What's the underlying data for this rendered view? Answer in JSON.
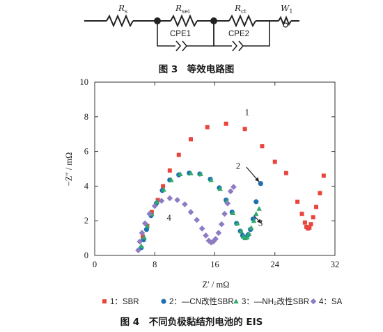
{
  "figure3": {
    "elements": [
      {
        "symbol": "R",
        "sub": "s"
      },
      {
        "symbol": "R",
        "sub": "sei"
      },
      {
        "symbol": "R",
        "sub": "ct"
      },
      {
        "symbol": "W",
        "sub": "1"
      }
    ],
    "cpe1": "CPE1",
    "cpe2": "CPE2",
    "caption": "图 3　等效电路图"
  },
  "figure4": {
    "caption": "图 4　不同负极黏结剂电池的 EIS",
    "chart_data": {
      "type": "scatter",
      "title": "",
      "xlabel": "Z′ / mΩ",
      "ylabel": "−Z″ / mΩ",
      "xlim": [
        0,
        32
      ],
      "ylim": [
        0,
        10
      ],
      "xticks": [
        0,
        8,
        16,
        24,
        32
      ],
      "yticks": [
        0,
        2,
        4,
        6,
        8,
        10
      ],
      "grid": false,
      "legend_position": "bottom",
      "annotations": [
        "1",
        "2",
        "3",
        "4"
      ],
      "series": [
        {
          "name": "1：SBR",
          "marker": "square",
          "color": "#e8453c",
          "points": [
            [
              6.4,
              1.1
            ],
            [
              7.0,
              1.7
            ],
            [
              7.6,
              2.5
            ],
            [
              8.4,
              3.2
            ],
            [
              9.1,
              4.0
            ],
            [
              10.0,
              4.9
            ],
            [
              11.2,
              5.8
            ],
            [
              12.8,
              6.7
            ],
            [
              15.0,
              7.4
            ],
            [
              17.5,
              7.6
            ],
            [
              20.0,
              7.3
            ],
            [
              22.3,
              6.3
            ],
            [
              24.0,
              5.4
            ],
            [
              25.5,
              4.75
            ],
            [
              27.0,
              3.1
            ],
            [
              27.6,
              2.4
            ],
            [
              28.0,
              1.9
            ],
            [
              28.2,
              1.65
            ],
            [
              28.4,
              1.55
            ],
            [
              28.6,
              1.6
            ],
            [
              28.8,
              1.8
            ],
            [
              29.1,
              2.2
            ],
            [
              29.5,
              2.8
            ],
            [
              30.0,
              3.6
            ],
            [
              30.5,
              4.6
            ]
          ]
        },
        {
          "name": "2：—CN改性SBR",
          "marker": "circle",
          "color": "#1f6fb2",
          "points": [
            [
              6.2,
              0.45
            ],
            [
              6.5,
              0.9
            ],
            [
              6.9,
              1.5
            ],
            [
              7.5,
              2.3
            ],
            [
              8.2,
              3.0
            ],
            [
              9.0,
              3.75
            ],
            [
              10.0,
              4.35
            ],
            [
              11.2,
              4.65
            ],
            [
              12.6,
              4.75
            ],
            [
              14.0,
              4.7
            ],
            [
              15.4,
              4.4
            ],
            [
              16.6,
              3.9
            ],
            [
              17.5,
              3.2
            ],
            [
              18.3,
              2.5
            ],
            [
              18.9,
              1.85
            ],
            [
              19.4,
              1.4
            ],
            [
              19.7,
              1.15
            ],
            [
              19.95,
              1.05
            ],
            [
              20.2,
              1.05
            ],
            [
              20.45,
              1.2
            ],
            [
              20.75,
              1.5
            ],
            [
              21.1,
              2.1
            ],
            [
              21.5,
              3.1
            ],
            [
              22.1,
              4.15
            ]
          ]
        },
        {
          "name": "3：—NH₂改性SBR",
          "marker": "triangle",
          "color": "#2faa6a",
          "points": [
            [
              6.2,
              0.55
            ],
            [
              6.6,
              1.05
            ],
            [
              7.0,
              1.7
            ],
            [
              7.6,
              2.4
            ],
            [
              8.3,
              3.1
            ],
            [
              9.2,
              3.8
            ],
            [
              10.2,
              4.35
            ],
            [
              11.4,
              4.7
            ],
            [
              12.8,
              4.75
            ],
            [
              14.1,
              4.7
            ],
            [
              15.5,
              4.35
            ],
            [
              16.7,
              3.85
            ],
            [
              17.6,
              3.15
            ],
            [
              18.4,
              2.45
            ],
            [
              19.0,
              1.85
            ],
            [
              19.5,
              1.4
            ],
            [
              19.8,
              1.1
            ],
            [
              20.05,
              1.0
            ],
            [
              20.3,
              1.05
            ],
            [
              20.55,
              1.25
            ],
            [
              20.85,
              1.6
            ],
            [
              21.2,
              2.0
            ],
            [
              21.5,
              2.4
            ],
            [
              21.9,
              2.7
            ]
          ]
        },
        {
          "name": "4：SA",
          "marker": "diamond",
          "color": "#8e7cc3",
          "points": [
            [
              5.8,
              0.3
            ],
            [
              6.0,
              0.8
            ],
            [
              6.3,
              1.3
            ],
            [
              6.7,
              1.85
            ],
            [
              7.3,
              2.4
            ],
            [
              8.0,
              2.85
            ],
            [
              8.9,
              3.15
            ],
            [
              10.0,
              3.3
            ],
            [
              11.0,
              3.2
            ],
            [
              12.0,
              2.95
            ],
            [
              12.8,
              2.5
            ],
            [
              13.6,
              2.05
            ],
            [
              14.3,
              1.55
            ],
            [
              14.8,
              1.15
            ],
            [
              15.2,
              0.85
            ],
            [
              15.5,
              0.75
            ],
            [
              15.8,
              0.8
            ],
            [
              16.1,
              0.95
            ],
            [
              16.5,
              1.3
            ],
            [
              16.9,
              1.8
            ],
            [
              17.3,
              2.4
            ],
            [
              17.7,
              3.0
            ],
            [
              18.1,
              3.7
            ],
            [
              18.5,
              3.95
            ]
          ]
        }
      ]
    }
  }
}
